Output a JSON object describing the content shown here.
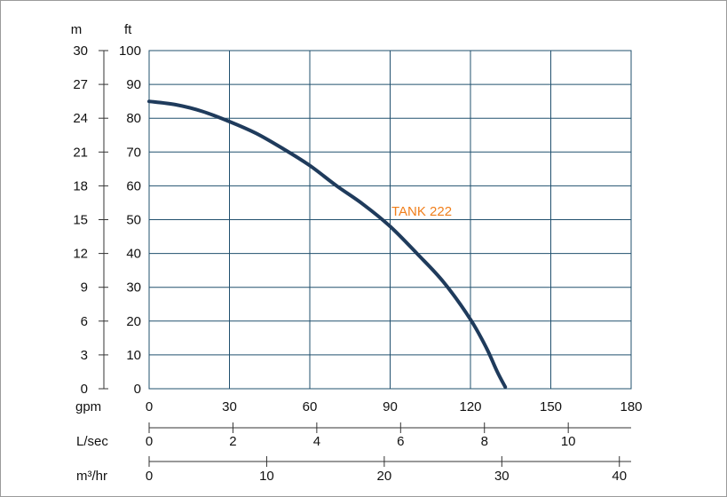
{
  "colors": {
    "curve": "#1f3b5c",
    "grid": "#21506e",
    "label": "#f07f1b",
    "axis": "#333333"
  },
  "chart_data": {
    "type": "line",
    "title": "",
    "series": [
      {
        "name": "TANK 222",
        "x": [
          0,
          10,
          20,
          30,
          40,
          50,
          60,
          70,
          80,
          90,
          100,
          110,
          120,
          126,
          130,
          133
        ],
        "y": [
          85,
          84,
          82,
          79,
          75.5,
          71,
          66,
          60,
          54.5,
          48,
          40,
          31.5,
          20.5,
          12,
          5,
          0.5
        ]
      }
    ],
    "x_axis": {
      "unit": "gpm",
      "ticks": [
        "0",
        "30",
        "60",
        "90",
        "120",
        "150",
        "180"
      ],
      "xlim": [
        0,
        180
      ]
    },
    "y_axis_primary": {
      "unit": "ft",
      "ticks": [
        "0",
        "10",
        "20",
        "30",
        "40",
        "50",
        "60",
        "70",
        "80",
        "90",
        "100"
      ],
      "ylim": [
        0,
        100
      ]
    },
    "y_axis_secondary": {
      "unit": "m",
      "ticks": [
        "0",
        "3",
        "6",
        "9",
        "12",
        "15",
        "18",
        "21",
        "24",
        "27",
        "30"
      ]
    },
    "secondary_x_axes": [
      {
        "unit": "L/sec",
        "ticks": [
          "0",
          "2",
          "4",
          "6",
          "8",
          "10"
        ],
        "range": [
          0,
          11.5
        ]
      },
      {
        "unit": "m³/hr",
        "ticks": [
          "0",
          "10",
          "20",
          "30",
          "40"
        ],
        "range": [
          0,
          41
        ]
      }
    ],
    "grid": true
  }
}
